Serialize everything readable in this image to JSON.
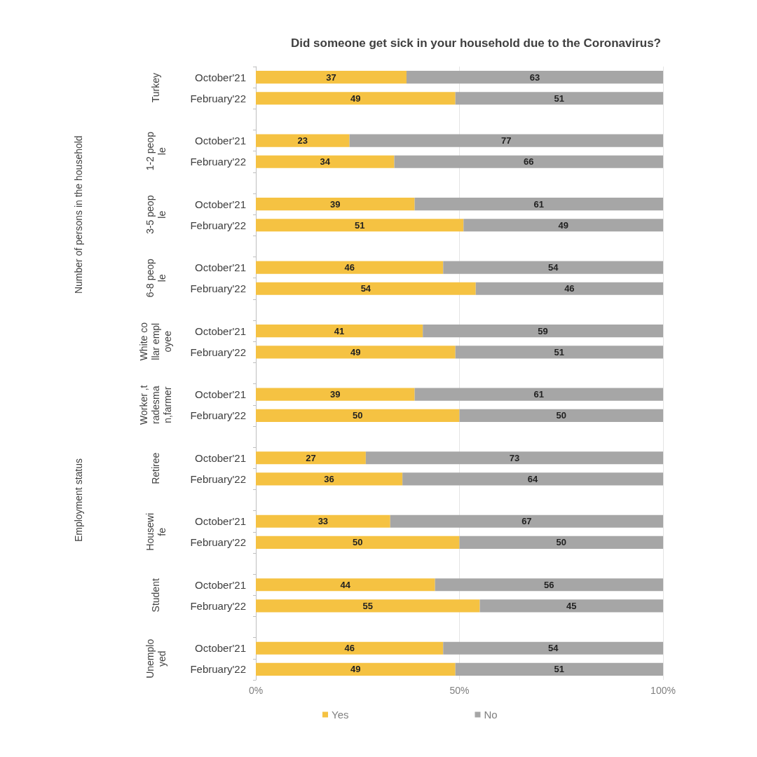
{
  "chart_data": {
    "type": "bar",
    "orientation": "horizontal",
    "stacked": true,
    "title": "Did someone get sick in your household due to the Coronavirus?",
    "categories": [
      "October'21",
      "February'22",
      null,
      "October'21",
      "February'22",
      null,
      "October'21",
      "February'22",
      null,
      "October'21",
      "February'22",
      null,
      "October'21",
      "February'22",
      null,
      "October'21",
      "February'22",
      null,
      "October'21",
      "February'22",
      null,
      "October'21",
      "February'22",
      null,
      "October'21",
      "February'22",
      null,
      "October'21",
      "February'22"
    ],
    "series": [
      {
        "name": "Yes",
        "color": "#f5c242",
        "values": [
          37,
          49,
          null,
          23,
          34,
          null,
          39,
          51,
          null,
          46,
          54,
          null,
          41,
          49,
          null,
          39,
          50,
          null,
          27,
          36,
          null,
          33,
          50,
          null,
          44,
          55,
          null,
          46,
          49
        ]
      },
      {
        "name": "No",
        "color": "#a6a6a6",
        "values": [
          63,
          51,
          null,
          77,
          66,
          null,
          61,
          49,
          null,
          54,
          46,
          null,
          59,
          51,
          null,
          61,
          50,
          null,
          73,
          64,
          null,
          67,
          50,
          null,
          56,
          45,
          null,
          54,
          51
        ]
      }
    ],
    "xlim": [
      0,
      100
    ],
    "xticks": [
      {
        "value": 0,
        "label": "0%"
      },
      {
        "value": 50,
        "label": "50%"
      },
      {
        "value": 100,
        "label": "100%"
      }
    ],
    "data_labels": true,
    "grid": "x",
    "legend": "bottom",
    "annotations": [
      "Turkey",
      "1-2 people",
      "3-5 people",
      "6-8 people",
      "White collar employee",
      "Worker ,tradesman,farmer",
      "Retiree",
      "Housewife",
      "Student",
      "Unemployed",
      "Number of persons in the household",
      "Employment status"
    ]
  }
}
